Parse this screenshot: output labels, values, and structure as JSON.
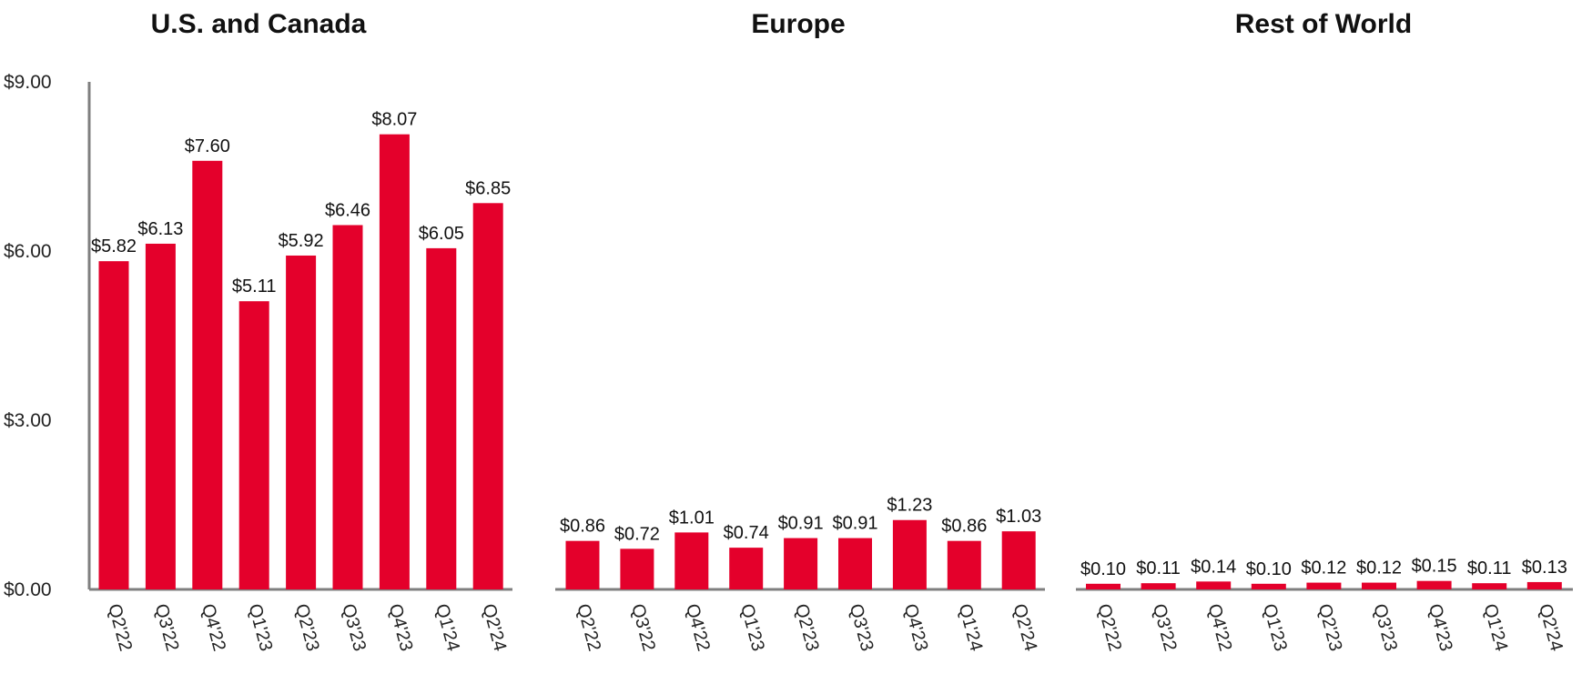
{
  "chart_data": [
    {
      "type": "bar",
      "title": "U.S. and Canada",
      "categories": [
        "Q2'22",
        "Q3'22",
        "Q4'22",
        "Q1'23",
        "Q2'23",
        "Q3'23",
        "Q4'23",
        "Q1'24",
        "Q2'24"
      ],
      "values": [
        5.82,
        6.13,
        7.6,
        5.11,
        5.92,
        6.46,
        8.07,
        6.05,
        6.85
      ],
      "value_labels": [
        "$5.82",
        "$6.13",
        "$7.60",
        "$5.11",
        "$5.92",
        "$6.46",
        "$8.07",
        "$6.05",
        "$6.85"
      ],
      "ylim": [
        0,
        9
      ],
      "yticks": [
        0,
        3,
        6,
        9
      ],
      "ytick_labels": [
        "$0.00",
        "$3.00",
        "$6.00",
        "$9.00"
      ],
      "grid": false,
      "bar_color": "#e4002b"
    },
    {
      "type": "bar",
      "title": "Europe",
      "categories": [
        "Q2'22",
        "Q3'22",
        "Q4'22",
        "Q1'23",
        "Q2'23",
        "Q3'23",
        "Q4'23",
        "Q1'24",
        "Q2'24"
      ],
      "values": [
        0.86,
        0.72,
        1.01,
        0.74,
        0.91,
        0.91,
        1.23,
        0.86,
        1.03
      ],
      "value_labels": [
        "$0.86",
        "$0.72",
        "$1.01",
        "$0.74",
        "$0.91",
        "$0.91",
        "$1.23",
        "$0.86",
        "$1.03"
      ],
      "ylim": [
        0,
        9
      ],
      "grid": false,
      "bar_color": "#e4002b"
    },
    {
      "type": "bar",
      "title": "Rest of World",
      "categories": [
        "Q2'22",
        "Q3'22",
        "Q4'22",
        "Q1'23",
        "Q2'23",
        "Q3'23",
        "Q4'23",
        "Q1'24",
        "Q2'24"
      ],
      "values": [
        0.1,
        0.11,
        0.14,
        0.1,
        0.12,
        0.12,
        0.15,
        0.11,
        0.13
      ],
      "value_labels": [
        "$0.10",
        "$0.11",
        "$0.14",
        "$0.10",
        "$0.12",
        "$0.12",
        "$0.15",
        "$0.11",
        "$0.13"
      ],
      "ylim": [
        0,
        9
      ],
      "grid": false,
      "bar_color": "#e4002b"
    }
  ],
  "colors": {
    "bar": "#e4002b",
    "axis": "#7f7f7f",
    "text": "#111111"
  }
}
